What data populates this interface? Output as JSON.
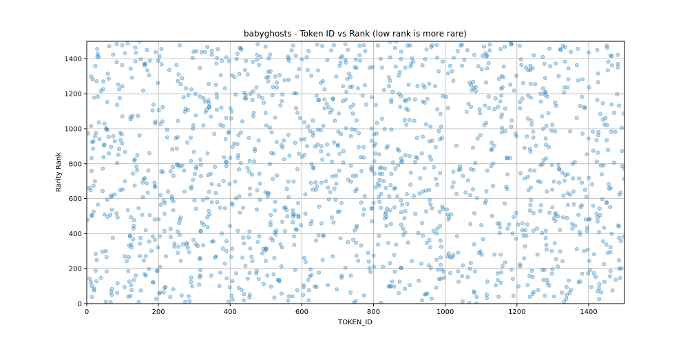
{
  "chart_data": {
    "type": "scatter",
    "title": "babyghosts - Token ID vs Rank (low rank is more rare)",
    "xlabel": "TOKEN_ID",
    "ylabel": "Rarity Rank",
    "xlim": [
      0,
      1500
    ],
    "ylim": [
      0,
      1500
    ],
    "xticks": [
      0,
      200,
      400,
      600,
      800,
      1000,
      1200,
      1400
    ],
    "yticks": [
      0,
      200,
      400,
      600,
      800,
      1000,
      1200,
      1400
    ],
    "grid": true,
    "point_color": "#1f77b4",
    "point_alpha": 0.3,
    "n_points": 1500,
    "point_generator_seed": 2291
  }
}
